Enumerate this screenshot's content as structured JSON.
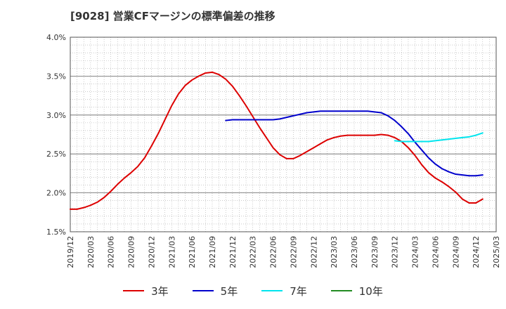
{
  "chart_data": {
    "type": "line",
    "title": "[9028]  営業CFマージンの標準偏差の推移",
    "xlabel": "",
    "ylabel": "",
    "ylim": [
      1.5,
      4.0
    ],
    "yticks": [
      {
        "value": 1.5,
        "label": "1.5%"
      },
      {
        "value": 2.0,
        "label": "2.0%"
      },
      {
        "value": 2.5,
        "label": "2.5%"
      },
      {
        "value": 3.0,
        "label": "3.0%"
      },
      {
        "value": 3.5,
        "label": "3.5%"
      },
      {
        "value": 4.0,
        "label": "4.0%"
      }
    ],
    "x_start": "2019-12",
    "x_end": "2025-03",
    "xticks": [
      "2019/12",
      "2020/03",
      "2020/06",
      "2020/09",
      "2020/12",
      "2021/03",
      "2021/06",
      "2021/09",
      "2021/12",
      "2022/03",
      "2022/06",
      "2022/09",
      "2022/12",
      "2023/03",
      "2023/06",
      "2023/09",
      "2023/12",
      "2024/03",
      "2024/06",
      "2024/09",
      "2024/12",
      "2025/03"
    ],
    "grid": true,
    "legend_position": "bottom",
    "series": [
      {
        "name": "3年",
        "color": "#dd0000",
        "points": [
          [
            "2019-12",
            1.79
          ],
          [
            "2020-01",
            1.79
          ],
          [
            "2020-02",
            1.81
          ],
          [
            "2020-03",
            1.84
          ],
          [
            "2020-04",
            1.88
          ],
          [
            "2020-05",
            1.94
          ],
          [
            "2020-06",
            2.02
          ],
          [
            "2020-07",
            2.11
          ],
          [
            "2020-08",
            2.19
          ],
          [
            "2020-09",
            2.26
          ],
          [
            "2020-10",
            2.34
          ],
          [
            "2020-11",
            2.45
          ],
          [
            "2020-12",
            2.6
          ],
          [
            "2021-01",
            2.76
          ],
          [
            "2021-02",
            2.94
          ],
          [
            "2021-03",
            3.12
          ],
          [
            "2021-04",
            3.27
          ],
          [
            "2021-05",
            3.38
          ],
          [
            "2021-06",
            3.45
          ],
          [
            "2021-07",
            3.5
          ],
          [
            "2021-08",
            3.54
          ],
          [
            "2021-09",
            3.55
          ],
          [
            "2021-10",
            3.52
          ],
          [
            "2021-11",
            3.46
          ],
          [
            "2021-12",
            3.37
          ],
          [
            "2022-01",
            3.25
          ],
          [
            "2022-02",
            3.12
          ],
          [
            "2022-03",
            2.98
          ],
          [
            "2022-04",
            2.84
          ],
          [
            "2022-05",
            2.71
          ],
          [
            "2022-06",
            2.58
          ],
          [
            "2022-07",
            2.49
          ],
          [
            "2022-08",
            2.44
          ],
          [
            "2022-09",
            2.44
          ],
          [
            "2022-10",
            2.48
          ],
          [
            "2022-11",
            2.53
          ],
          [
            "2022-12",
            2.58
          ],
          [
            "2023-01",
            2.63
          ],
          [
            "2023-02",
            2.68
          ],
          [
            "2023-03",
            2.71
          ],
          [
            "2023-04",
            2.73
          ],
          [
            "2023-05",
            2.74
          ],
          [
            "2023-06",
            2.74
          ],
          [
            "2023-07",
            2.74
          ],
          [
            "2023-08",
            2.74
          ],
          [
            "2023-09",
            2.74
          ],
          [
            "2023-10",
            2.75
          ],
          [
            "2023-11",
            2.74
          ],
          [
            "2023-12",
            2.71
          ],
          [
            "2024-01",
            2.66
          ],
          [
            "2024-02",
            2.58
          ],
          [
            "2024-03",
            2.48
          ],
          [
            "2024-04",
            2.36
          ],
          [
            "2024-05",
            2.26
          ],
          [
            "2024-06",
            2.19
          ],
          [
            "2024-07",
            2.14
          ],
          [
            "2024-08",
            2.08
          ],
          [
            "2024-09",
            2.01
          ],
          [
            "2024-10",
            1.92
          ],
          [
            "2024-11",
            1.87
          ],
          [
            "2024-12",
            1.87
          ],
          [
            "2025-01",
            1.92
          ]
        ]
      },
      {
        "name": "5年",
        "color": "#0000cc",
        "points": [
          [
            "2021-11",
            2.93
          ],
          [
            "2021-12",
            2.94
          ],
          [
            "2022-01",
            2.94
          ],
          [
            "2022-02",
            2.94
          ],
          [
            "2022-03",
            2.94
          ],
          [
            "2022-04",
            2.94
          ],
          [
            "2022-05",
            2.94
          ],
          [
            "2022-06",
            2.94
          ],
          [
            "2022-07",
            2.95
          ],
          [
            "2022-08",
            2.97
          ],
          [
            "2022-09",
            2.99
          ],
          [
            "2022-10",
            3.01
          ],
          [
            "2022-11",
            3.03
          ],
          [
            "2022-12",
            3.04
          ],
          [
            "2023-01",
            3.05
          ],
          [
            "2023-02",
            3.05
          ],
          [
            "2023-03",
            3.05
          ],
          [
            "2023-04",
            3.05
          ],
          [
            "2023-05",
            3.05
          ],
          [
            "2023-06",
            3.05
          ],
          [
            "2023-07",
            3.05
          ],
          [
            "2023-08",
            3.05
          ],
          [
            "2023-09",
            3.04
          ],
          [
            "2023-10",
            3.03
          ],
          [
            "2023-11",
            2.99
          ],
          [
            "2023-12",
            2.93
          ],
          [
            "2024-01",
            2.85
          ],
          [
            "2024-02",
            2.76
          ],
          [
            "2024-03",
            2.65
          ],
          [
            "2024-04",
            2.55
          ],
          [
            "2024-05",
            2.45
          ],
          [
            "2024-06",
            2.37
          ],
          [
            "2024-07",
            2.31
          ],
          [
            "2024-08",
            2.27
          ],
          [
            "2024-09",
            2.24
          ],
          [
            "2024-10",
            2.23
          ],
          [
            "2024-11",
            2.22
          ],
          [
            "2024-12",
            2.22
          ],
          [
            "2025-01",
            2.23
          ]
        ]
      },
      {
        "name": "7年",
        "color": "#00e5ee",
        "points": [
          [
            "2023-12",
            2.67
          ],
          [
            "2024-01",
            2.66
          ],
          [
            "2024-02",
            2.66
          ],
          [
            "2024-03",
            2.66
          ],
          [
            "2024-04",
            2.66
          ],
          [
            "2024-05",
            2.66
          ],
          [
            "2024-06",
            2.67
          ],
          [
            "2024-07",
            2.68
          ],
          [
            "2024-08",
            2.69
          ],
          [
            "2024-09",
            2.7
          ],
          [
            "2024-10",
            2.71
          ],
          [
            "2024-11",
            2.72
          ],
          [
            "2024-12",
            2.74
          ],
          [
            "2025-01",
            2.77
          ]
        ]
      },
      {
        "name": "10年",
        "color": "#228b22",
        "points": []
      }
    ]
  }
}
